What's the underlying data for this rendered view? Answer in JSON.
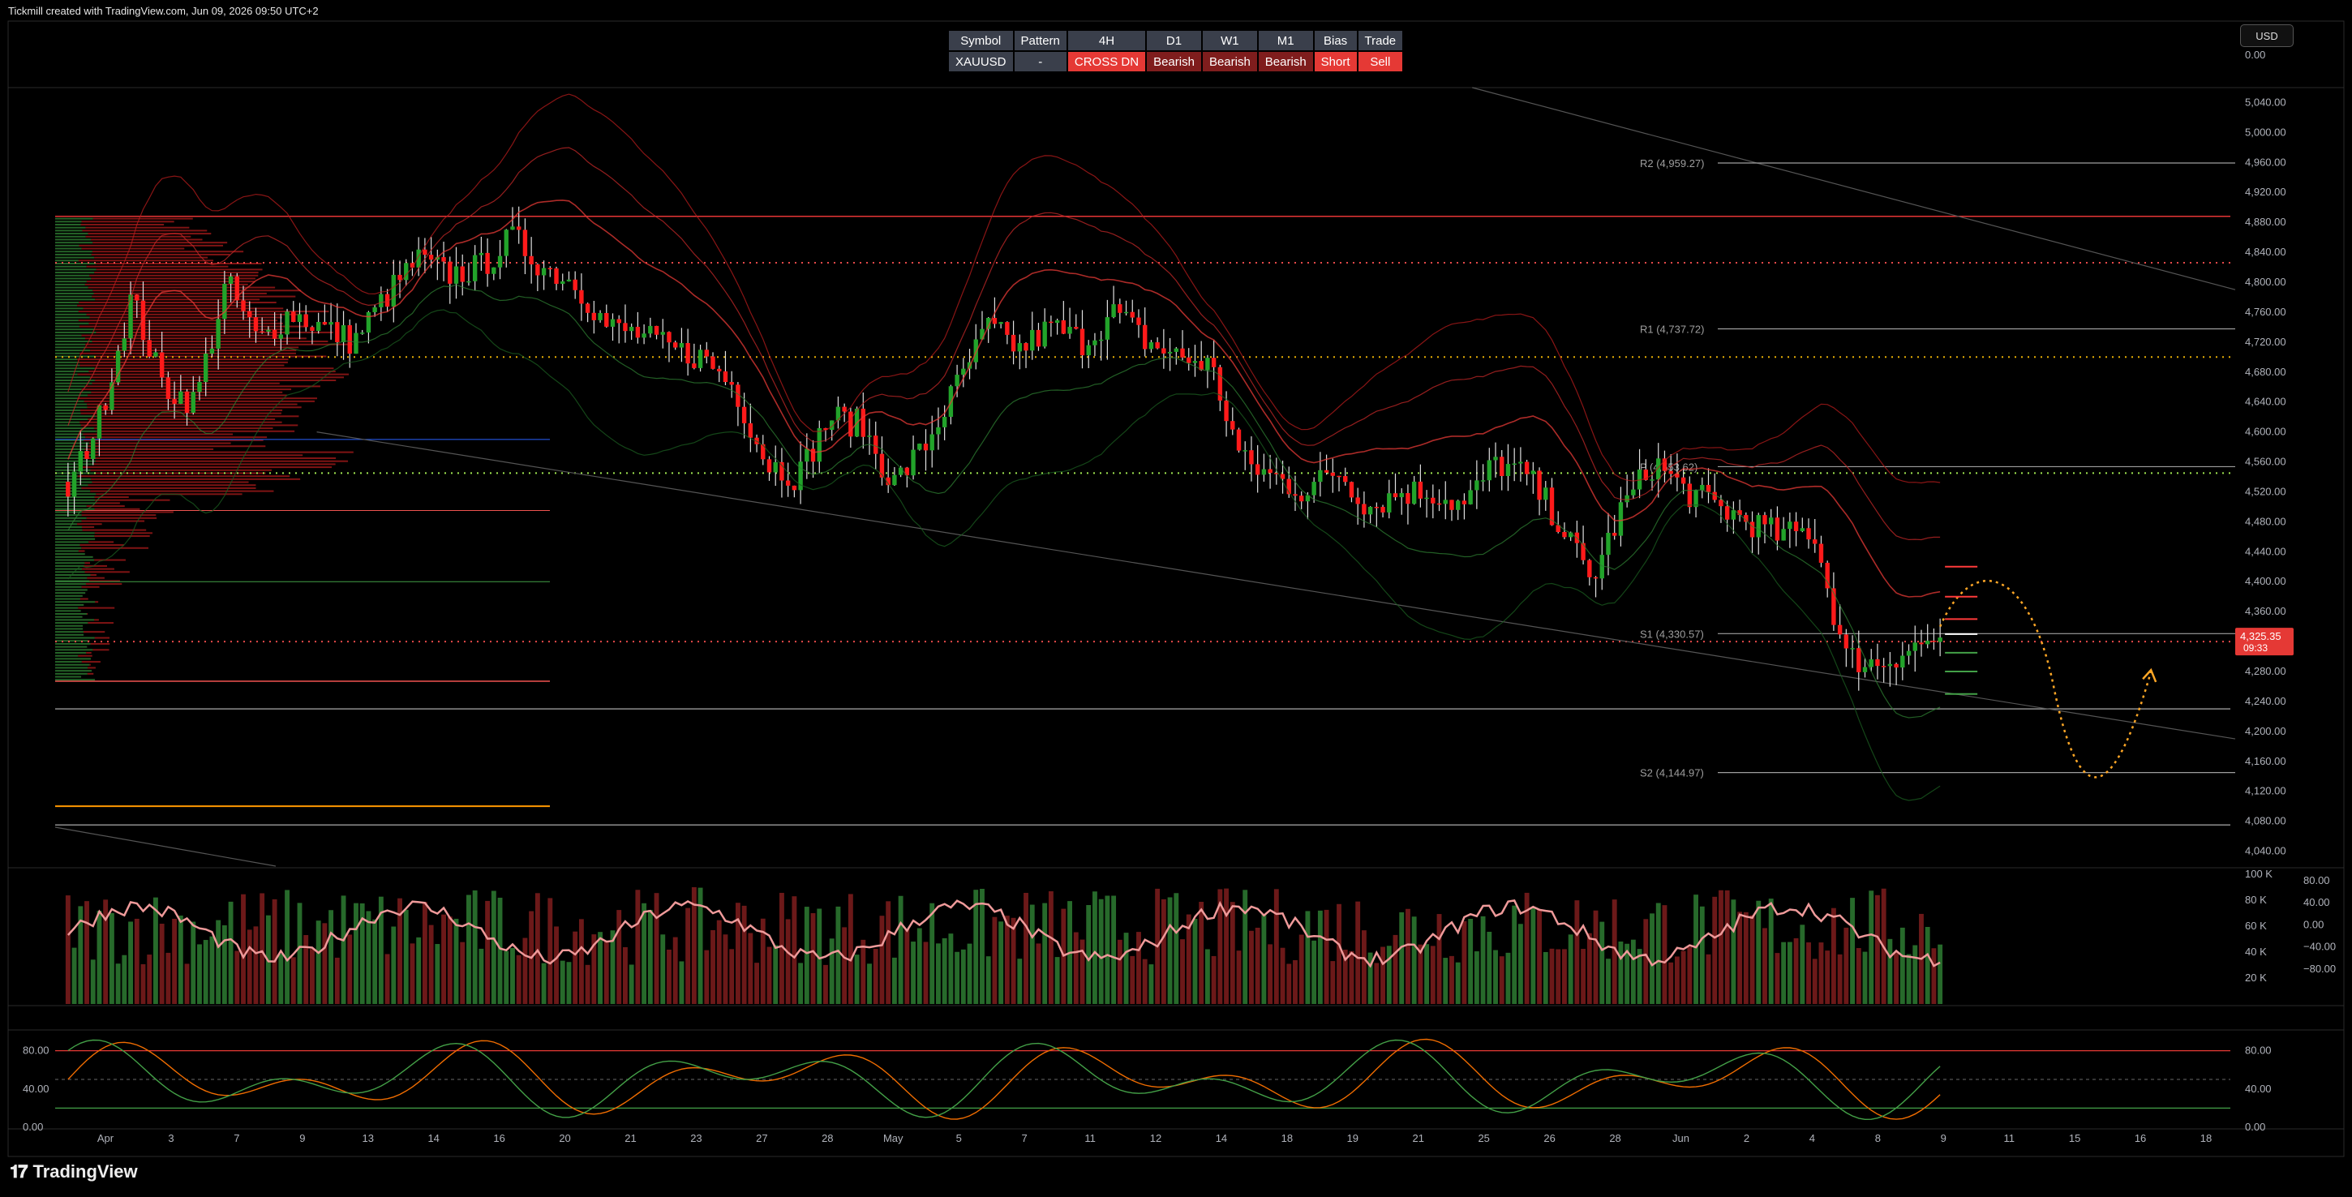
{
  "header": {
    "title": "Tickmill created with TradingView.com, Jun 09, 2026 09:50 UTC+2"
  },
  "signal_table": {
    "headers": [
      "Symbol",
      "Pattern",
      "4H",
      "D1",
      "W1",
      "M1",
      "Bias",
      "Trade"
    ],
    "values": [
      "XAUUSD",
      "-",
      "CROSS DN",
      "Bearish",
      "Bearish",
      "Bearish",
      "Short",
      "Sell"
    ]
  },
  "currency_button": "USD",
  "branding": {
    "logo_text": "TradingView"
  },
  "colors": {
    "bull": "#22a32a",
    "bear": "#ff1a1a",
    "pivot": "#ffa726",
    "accent": "#e53935"
  },
  "chart_data": [
    {
      "type": "candlestick",
      "symbol": "XAUUSD",
      "timeframe": "4H",
      "ylim": [
        4020,
        5060
      ],
      "y_ticks": [
        "5,040.00",
        "5,000.00",
        "4,960.00",
        "4,920.00",
        "4,880.00",
        "4,840.00",
        "4,800.00",
        "4,760.00",
        "4,720.00",
        "4,680.00",
        "4,640.00",
        "4,600.00",
        "4,560.00",
        "4,520.00",
        "4,480.00",
        "4,440.00",
        "4,400.00",
        "4,360.00",
        "4,320.00",
        "4,280.00",
        "4,240.00",
        "4,200.00",
        "4,160.00",
        "4,120.00",
        "4,080.00",
        "4,040.00"
      ],
      "x_ticks": [
        "Apr",
        "3",
        "7",
        "9",
        "13",
        "14",
        "16",
        "20",
        "21",
        "23",
        "27",
        "28",
        "May",
        "5",
        "7",
        "11",
        "12",
        "14",
        "18",
        "19",
        "21",
        "25",
        "26",
        "28",
        "Jun",
        "2",
        "4",
        "8",
        "9",
        "11",
        "15",
        "16",
        "18"
      ],
      "pivots": [
        {
          "label": "R2 (4,959.27)",
          "value": 4959.27
        },
        {
          "label": "R1 (4,737.72)",
          "value": 4737.72
        },
        {
          "label": "P (4,553.62)",
          "value": 4553.62
        },
        {
          "label": "S1 (4,330.57)",
          "value": 4330.57
        },
        {
          "label": "S2 (4,144.97)",
          "value": 4144.97
        }
      ],
      "last_price": {
        "price": "4,325.35",
        "countdown": "09:33",
        "value": 4325.35
      },
      "close_path": [
        4520,
        4620,
        4780,
        4660,
        4640,
        4800,
        4720,
        4760,
        4740,
        4720,
        4780,
        4830,
        4810,
        4820,
        4860,
        4820,
        4800,
        4740,
        4730,
        4710,
        4700,
        4660,
        4560,
        4540,
        4620,
        4610,
        4530,
        4580,
        4660,
        4740,
        4710,
        4740,
        4720,
        4760,
        4720,
        4700,
        4690,
        4560,
        4540,
        4520,
        4550,
        4500,
        4520,
        4520,
        4500,
        4560,
        4540,
        4480,
        4400,
        4500,
        4560,
        4520,
        4500,
        4480,
        4460,
        4470,
        4300,
        4290,
        4310,
        4325.35
      ],
      "trend_lines": [
        {
          "from": [
            0.65,
            5060
          ],
          "to": [
            1.0,
            4790
          ]
        },
        {
          "from": [
            0.12,
            4600
          ],
          "to": [
            1.0,
            4190
          ]
        }
      ],
      "levels": [
        {
          "value": 4888,
          "style": "solid",
          "color": "#ff3b3b"
        },
        {
          "value": 4826,
          "style": "dotted",
          "color": "#ff5252"
        },
        {
          "value": 4700,
          "style": "dotted",
          "color": "#ffc107"
        },
        {
          "value": 4545,
          "style": "dotted",
          "color": "#b2ff59"
        },
        {
          "value": 4320,
          "style": "dotted",
          "color": "#ff5252"
        },
        {
          "value": 4230,
          "style": "solid",
          "color": "#9e9e9e"
        },
        {
          "value": 4075,
          "style": "solid",
          "color": "#9e9e9e"
        }
      ]
    },
    {
      "type": "bar",
      "name": "volume",
      "y_ticks_left": [
        "100 K",
        "80 K",
        "60 K",
        "40 K",
        "20 K"
      ],
      "y_ticks_right": [
        "80.00",
        "40.00",
        "0.00",
        "−40.00",
        "−80.00"
      ]
    },
    {
      "type": "line",
      "name": "stochastic",
      "ylim": [
        0,
        100
      ],
      "y_ticks": [
        "80.00",
        "40.00",
        "0.00"
      ],
      "bands": [
        80,
        50,
        20
      ]
    }
  ]
}
